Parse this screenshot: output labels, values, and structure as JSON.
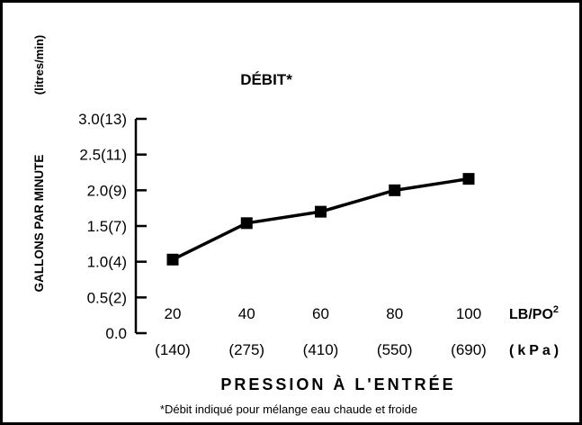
{
  "chart_data": {
    "type": "line",
    "title": "DÉBIT*",
    "ylabel": "GALLONS PAR MINUTE",
    "ylabel_secondary": "(litres/min)",
    "xlabel": "PRESSION À L'ENTRÉE",
    "x_unit_primary": "LB/PO",
    "x_unit_superscript": "2",
    "x_unit_secondary": "(kPa)",
    "footnote": "*Débit indiqué pour mélange eau chaude et froide",
    "x": [
      20,
      40,
      60,
      80,
      100
    ],
    "x_tick_labels": [
      "20",
      "40",
      "60",
      "80",
      "100"
    ],
    "x_tick_labels_secondary": [
      "(140)",
      "(275)",
      "(410)",
      "(550)",
      "(690)"
    ],
    "y_ticks": [
      0.0,
      0.5,
      1.0,
      1.5,
      2.0,
      2.5,
      3.0
    ],
    "y_tick_labels": [
      "0.0",
      "0.5(2)",
      "1.0(4)",
      "1.5(7)",
      "2.0(9)",
      "2.5(11)",
      "3.0(13)"
    ],
    "ylim": [
      0,
      3.0
    ],
    "series": [
      {
        "values": [
          1.03,
          1.54,
          1.7,
          2.0,
          2.16
        ]
      }
    ],
    "grid": false,
    "line_color": "#000000",
    "marker": "square"
  }
}
